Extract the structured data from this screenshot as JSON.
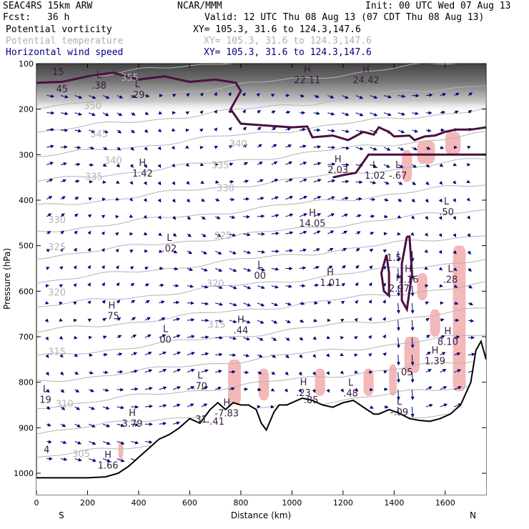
{
  "header": {
    "model": "SEAC4RS 15km ARW",
    "org": "NCAR/MMM",
    "init": "Init: 00 UTC Wed 07 Aug 13",
    "fcst_label": "Fcst:",
    "fcst_value": "36 h",
    "valid": "Valid: 12 UTC Thu 08 Aug 13 (07 CDT Thu 08 Aug 13)",
    "fields": [
      {
        "name": "Potential vorticity",
        "xy": "XY= 105.3, 31.6 to 124.3,147.6",
        "color": "#000000"
      },
      {
        "name": "Potential temperature",
        "xy": "XY= 105.3, 31.6 to 124.3,147.6",
        "color": "#b0b0b0"
      },
      {
        "name": "Horizontal wind speed",
        "xy": "XY= 105.3, 31.6 to 124.3,147.6",
        "color": "#000080"
      }
    ]
  },
  "colors": {
    "theta": "#b4b4b4",
    "pv": "#4a1040",
    "wind": "#00007a",
    "pink": "#f4b8b8",
    "terrain": "#000000"
  },
  "chart_data": {
    "type": "cross-section",
    "xlabel": "Distance (km)",
    "ylabel": "Pressure (hPa)",
    "xlim": [
      0,
      1760
    ],
    "ylim": [
      1050,
      100
    ],
    "x_ticks": [
      "0",
      "200",
      "400",
      "600",
      "800",
      "1000",
      "1200",
      "1400",
      "1600"
    ],
    "y_ticks": [
      "100",
      "200",
      "300",
      "400",
      "500",
      "600",
      "700",
      "800",
      "900",
      "1000"
    ],
    "x_end_labels": {
      "left": "S",
      "right": "N"
    },
    "theta_labels": [
      {
        "text": "355",
        "x": 365,
        "p": 138
      },
      {
        "text": "350",
        "x": 220,
        "p": 200
      },
      {
        "text": "345",
        "x": 245,
        "p": 262
      },
      {
        "text": "340",
        "x": 300,
        "p": 320
      },
      {
        "text": "340",
        "x": 790,
        "p": 283
      },
      {
        "text": "335",
        "x": 720,
        "p": 330
      },
      {
        "text": "335",
        "x": 225,
        "p": 355
      },
      {
        "text": "330",
        "x": 740,
        "p": 380
      },
      {
        "text": "330",
        "x": 80,
        "p": 450
      },
      {
        "text": "325",
        "x": 730,
        "p": 485
      },
      {
        "text": "325",
        "x": 80,
        "p": 510
      },
      {
        "text": "320",
        "x": 700,
        "p": 590
      },
      {
        "text": "320",
        "x": 80,
        "p": 610
      },
      {
        "text": "315",
        "x": 705,
        "p": 680
      },
      {
        "text": "315",
        "x": 80,
        "p": 740
      },
      {
        "text": "310",
        "x": 110,
        "p": 855
      },
      {
        "text": "305",
        "x": 175,
        "p": 965
      }
    ],
    "hl_labels": [
      {
        "letter": "L",
        "value": "15",
        "x": 85,
        "p": 122
      },
      {
        "letter": "",
        "value": "45",
        "x": 100,
        "p": 160
      },
      {
        "letter": "L",
        "value": ".38",
        "x": 245,
        "p": 152
      },
      {
        "letter": "L",
        "value": ".29",
        "x": 395,
        "p": 172
      },
      {
        "letter": "H",
        "value": "22.11",
        "x": 1060,
        "p": 140
      },
      {
        "letter": "H",
        "value": "24.42",
        "x": 1290,
        "p": 140
      },
      {
        "letter": "H",
        "value": "1.42",
        "x": 415,
        "p": 345
      },
      {
        "letter": "H",
        "value": "2.03",
        "x": 1180,
        "p": 337
      },
      {
        "letter": "L",
        "value": "1.02",
        "x": 1325,
        "p": 350
      },
      {
        "letter": "L",
        "value": "-.67",
        "x": 1415,
        "p": 350
      },
      {
        "letter": "L",
        "value": ".50",
        "x": 1605,
        "p": 430
      },
      {
        "letter": "H",
        "value": "14.05",
        "x": 1080,
        "p": 455
      },
      {
        "letter": "L",
        "value": ".02",
        "x": 520,
        "p": 510
      },
      {
        "letter": "L",
        "value": "00",
        "x": 875,
        "p": 570
      },
      {
        "letter": "H",
        "value": "1.01",
        "x": 1150,
        "p": 585
      },
      {
        "letter": "",
        "value": "1.5",
        "x": 1400,
        "p": 530
      },
      {
        "letter": "H",
        "value": "1.16",
        "x": 1455,
        "p": 578
      },
      {
        "letter": "H",
        "value": "2.97",
        "x": 1420,
        "p": 598
      },
      {
        "letter": "L",
        "value": ".28",
        "x": 1620,
        "p": 578
      },
      {
        "letter": "H",
        "value": ".75",
        "x": 295,
        "p": 658
      },
      {
        "letter": "L",
        "value": "00",
        "x": 505,
        "p": 710
      },
      {
        "letter": "H",
        "value": ".44",
        "x": 800,
        "p": 690
      },
      {
        "letter": "H",
        "value": "8.10",
        "x": 1610,
        "p": 715
      },
      {
        "letter": "H",
        "value": "1.39",
        "x": 1560,
        "p": 757
      },
      {
        "letter": "",
        "value": "05",
        "x": 1450,
        "p": 782
      },
      {
        "letter": "L",
        "value": ".70",
        "x": 640,
        "p": 812
      },
      {
        "letter": "H",
        "value": ".23",
        "x": 1045,
        "p": 827
      },
      {
        "letter": "",
        "value": ".85",
        "x": 1075,
        "p": 843
      },
      {
        "letter": "L",
        "value": ".48",
        "x": 1230,
        "p": 828
      },
      {
        "letter": "L",
        "value": "19",
        "x": 35,
        "p": 842
      },
      {
        "letter": "H",
        "value": "-7.83",
        "x": 745,
        "p": 872
      },
      {
        "letter": "L",
        "value": "-.09",
        "x": 1420,
        "p": 870
      },
      {
        "letter": "",
        "value": "-.41",
        "x": 700,
        "p": 890
      },
      {
        "letter": "H",
        "value": "3.79",
        "x": 375,
        "p": 895
      },
      {
        "letter": "",
        "value": "4",
        "x": 40,
        "p": 952
      },
      {
        "letter": "H",
        "value": "1.66",
        "x": 280,
        "p": 987
      },
      {
        "letter": "",
        "value": "31",
        "x": 645,
        "p": 885
      }
    ],
    "terrain": [
      [
        0,
        1010
      ],
      [
        100,
        1010
      ],
      [
        200,
        1010
      ],
      [
        270,
        1008
      ],
      [
        320,
        1000
      ],
      [
        360,
        985
      ],
      [
        400,
        965
      ],
      [
        440,
        945
      ],
      [
        480,
        925
      ],
      [
        520,
        915
      ],
      [
        560,
        900
      ],
      [
        600,
        880
      ],
      [
        640,
        890
      ],
      [
        680,
        860
      ],
      [
        710,
        845
      ],
      [
        740,
        860
      ],
      [
        770,
        845
      ],
      [
        800,
        850
      ],
      [
        830,
        850
      ],
      [
        860,
        860
      ],
      [
        880,
        890
      ],
      [
        900,
        905
      ],
      [
        930,
        865
      ],
      [
        950,
        850
      ],
      [
        980,
        850
      ],
      [
        1000,
        845
      ],
      [
        1040,
        835
      ],
      [
        1080,
        840
      ],
      [
        1120,
        850
      ],
      [
        1160,
        855
      ],
      [
        1200,
        845
      ],
      [
        1240,
        840
      ],
      [
        1280,
        855
      ],
      [
        1320,
        870
      ],
      [
        1340,
        870
      ],
      [
        1380,
        860
      ],
      [
        1420,
        868
      ],
      [
        1460,
        880
      ],
      [
        1500,
        884
      ],
      [
        1540,
        886
      ],
      [
        1580,
        880
      ],
      [
        1620,
        870
      ],
      [
        1660,
        850
      ],
      [
        1700,
        800
      ],
      [
        1720,
        730
      ],
      [
        1740,
        710
      ],
      [
        1760,
        750
      ]
    ],
    "pv2_contour": [
      [
        0,
        142
      ],
      [
        100,
        140
      ],
      [
        200,
        128
      ],
      [
        300,
        120
      ],
      [
        400,
        135
      ],
      [
        500,
        128
      ],
      [
        600,
        140
      ],
      [
        700,
        135
      ],
      [
        780,
        142
      ],
      [
        800,
        160
      ],
      [
        780,
        180
      ],
      [
        760,
        200
      ],
      [
        800,
        232
      ],
      [
        900,
        236
      ],
      [
        1000,
        240
      ],
      [
        1060,
        238
      ],
      [
        1080,
        262
      ],
      [
        1160,
        258
      ],
      [
        1220,
        268
      ],
      [
        1280,
        250
      ],
      [
        1320,
        256
      ],
      [
        1340,
        240
      ],
      [
        1380,
        250
      ],
      [
        1400,
        260
      ],
      [
        1460,
        258
      ],
      [
        1480,
        268
      ],
      [
        1520,
        260
      ],
      [
        1560,
        258
      ],
      [
        1600,
        250
      ],
      [
        1640,
        245
      ],
      [
        1700,
        245
      ],
      [
        1760,
        240
      ]
    ],
    "pv_lower_branch": [
      [
        1780,
        300
      ],
      [
        1300,
        300
      ],
      [
        1250,
        340
      ],
      [
        1200,
        345
      ],
      [
        1160,
        350
      ]
    ],
    "pv_blob": [
      [
        1370,
        520
      ],
      [
        1350,
        560
      ],
      [
        1360,
        600
      ],
      [
        1380,
        610
      ],
      [
        1380,
        560
      ],
      [
        1370,
        520
      ]
    ],
    "pv_loop": [
      [
        1450,
        480
      ],
      [
        1430,
        540
      ],
      [
        1430,
        620
      ],
      [
        1450,
        640
      ],
      [
        1470,
        560
      ],
      [
        1460,
        480
      ],
      [
        1450,
        480
      ]
    ],
    "pink_regions": [
      {
        "x0": 1430,
        "x1": 1470,
        "p0": 290,
        "p1": 360
      },
      {
        "x0": 1490,
        "x1": 1560,
        "p0": 270,
        "p1": 320
      },
      {
        "x0": 1600,
        "x1": 1660,
        "p0": 250,
        "p1": 300
      },
      {
        "x0": 1490,
        "x1": 1530,
        "p0": 560,
        "p1": 620
      },
      {
        "x0": 1630,
        "x1": 1680,
        "p0": 500,
        "p1": 820
      },
      {
        "x0": 1540,
        "x1": 1580,
        "p0": 640,
        "p1": 700
      },
      {
        "x0": 1440,
        "x1": 1500,
        "p0": 700,
        "p1": 780
      },
      {
        "x0": 1380,
        "x1": 1410,
        "p0": 760,
        "p1": 830
      },
      {
        "x0": 750,
        "x1": 800,
        "p0": 750,
        "p1": 850
      },
      {
        "x0": 870,
        "x1": 910,
        "p0": 770,
        "p1": 840
      },
      {
        "x0": 1090,
        "x1": 1130,
        "p0": 770,
        "p1": 830
      },
      {
        "x0": 1280,
        "x1": 1320,
        "p0": 770,
        "p1": 830
      },
      {
        "x0": 320,
        "x1": 340,
        "p0": 930,
        "p1": 970
      }
    ],
    "wind_speed_labels": [
      {
        "text": "H",
        "x": 1060,
        "p": 122
      },
      {
        "text": "H",
        "x": 1290,
        "p": 122
      }
    ]
  }
}
